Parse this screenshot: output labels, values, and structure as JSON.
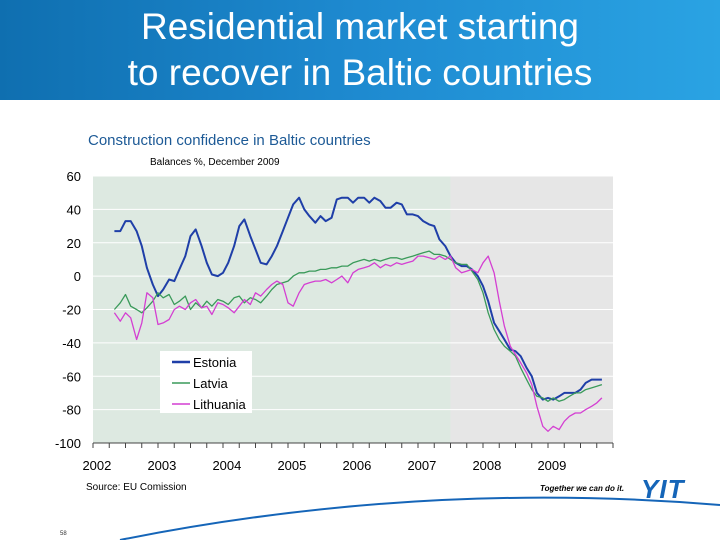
{
  "slide": {
    "title_line1": "Residential market starting",
    "title_line2": "to recover in Baltic countries",
    "source": "Source:  EU Comission",
    "tagline": "Together we can do it.",
    "logo": "YIT",
    "page_number": "58"
  },
  "colors": {
    "banner": "#1e8ad0",
    "estonia": "#1f3fa8",
    "latvia": "#3a9a5a",
    "lithuania": "#d43fd2",
    "plot_background_left": "#dde9e1",
    "plot_background_right": "#e6e6e6"
  },
  "chart_data": {
    "type": "line",
    "title": "Construction confidence in Baltic countries",
    "subtitle": "Balances %, December 2009",
    "xlabel": "",
    "ylabel": "",
    "ylim": [
      -100,
      60
    ],
    "xlim": [
      2002,
      2010
    ],
    "yticks": [
      "60",
      "40",
      "20",
      "0",
      "-20",
      "-40",
      "-60",
      "-80",
      "-100"
    ],
    "xticks": [
      "2002",
      "2003",
      "2004",
      "2005",
      "2006",
      "2007",
      "2008",
      "2009"
    ],
    "grid": true,
    "legend_position": "lower-left",
    "series": [
      {
        "name": "Estonia",
        "x": [
          2002.33,
          2002.42,
          2002.5,
          2002.58,
          2002.67,
          2002.75,
          2002.83,
          2002.92,
          2003.0,
          2003.08,
          2003.17,
          2003.25,
          2003.33,
          2003.42,
          2003.5,
          2003.58,
          2003.67,
          2003.75,
          2003.83,
          2003.92,
          2004.0,
          2004.08,
          2004.17,
          2004.25,
          2004.33,
          2004.42,
          2004.5,
          2004.58,
          2004.67,
          2004.75,
          2004.83,
          2004.92,
          2005.0,
          2005.08,
          2005.17,
          2005.25,
          2005.33,
          2005.42,
          2005.5,
          2005.58,
          2005.67,
          2005.75,
          2005.83,
          2005.92,
          2006.0,
          2006.08,
          2006.17,
          2006.25,
          2006.33,
          2006.42,
          2006.5,
          2006.58,
          2006.67,
          2006.75,
          2006.83,
          2006.92,
          2007.0,
          2007.08,
          2007.17,
          2007.25,
          2007.33,
          2007.42,
          2007.5,
          2007.58,
          2007.67,
          2007.75,
          2007.83,
          2007.92,
          2008.0,
          2008.08,
          2008.17,
          2008.25,
          2008.33,
          2008.42,
          2008.5,
          2008.58,
          2008.67,
          2008.75,
          2008.83,
          2008.92,
          2009.0,
          2009.08,
          2009.17,
          2009.25,
          2009.33,
          2009.42,
          2009.5,
          2009.58,
          2009.67,
          2009.75,
          2009.83
        ],
        "values": [
          27,
          27,
          33,
          33,
          27,
          18,
          5,
          -5,
          -12,
          -8,
          -2,
          -3,
          4,
          12,
          24,
          28,
          18,
          8,
          1,
          0,
          2,
          8,
          18,
          30,
          34,
          24,
          16,
          8,
          7,
          12,
          18,
          27,
          35,
          43,
          47,
          40,
          36,
          32,
          36,
          33,
          35,
          46,
          47,
          47,
          44,
          47,
          47,
          44,
          47,
          45,
          41,
          41,
          44,
          43,
          37,
          37,
          36,
          33,
          31,
          30,
          22,
          18,
          12,
          8,
          6,
          6,
          4,
          0,
          -6,
          -15,
          -28,
          -33,
          -38,
          -44,
          -45,
          -48,
          -55,
          -60,
          -70,
          -74,
          -73,
          -74,
          -72,
          -70,
          -70,
          -70,
          -68,
          -64,
          -62,
          -62,
          -62
        ]
      },
      {
        "name": "Latvia",
        "x": [
          2002.33,
          2002.42,
          2002.5,
          2002.58,
          2002.67,
          2002.75,
          2002.83,
          2002.92,
          2003.0,
          2003.08,
          2003.17,
          2003.25,
          2003.33,
          2003.42,
          2003.5,
          2003.58,
          2003.67,
          2003.75,
          2003.83,
          2003.92,
          2004.0,
          2004.08,
          2004.17,
          2004.25,
          2004.33,
          2004.42,
          2004.5,
          2004.58,
          2004.67,
          2004.75,
          2004.83,
          2004.92,
          2005.0,
          2005.08,
          2005.17,
          2005.25,
          2005.33,
          2005.42,
          2005.5,
          2005.58,
          2005.67,
          2005.75,
          2005.83,
          2005.92,
          2006.0,
          2006.08,
          2006.17,
          2006.25,
          2006.33,
          2006.42,
          2006.5,
          2006.58,
          2006.67,
          2006.75,
          2006.83,
          2006.92,
          2007.0,
          2007.08,
          2007.17,
          2007.25,
          2007.33,
          2007.42,
          2007.5,
          2007.58,
          2007.67,
          2007.75,
          2007.83,
          2007.92,
          2008.0,
          2008.08,
          2008.17,
          2008.25,
          2008.33,
          2008.42,
          2008.5,
          2008.58,
          2008.67,
          2008.75,
          2008.83,
          2008.92,
          2009.0,
          2009.08,
          2009.17,
          2009.25,
          2009.33,
          2009.42,
          2009.5,
          2009.58,
          2009.67,
          2009.75,
          2009.83
        ],
        "values": [
          -20,
          -16,
          -11,
          -18,
          -20,
          -22,
          -19,
          -15,
          -10,
          -13,
          -11,
          -17,
          -15,
          -12,
          -20,
          -16,
          -19,
          -15,
          -18,
          -14,
          -15,
          -17,
          -13,
          -12,
          -16,
          -13,
          -14,
          -16,
          -12,
          -8,
          -5,
          -4,
          -3,
          0,
          2,
          2,
          3,
          3,
          4,
          4,
          5,
          5,
          6,
          6,
          8,
          9,
          10,
          9,
          10,
          9,
          10,
          11,
          11,
          10,
          11,
          12,
          13,
          14,
          15,
          13,
          13,
          12,
          10,
          8,
          7,
          7,
          3,
          -2,
          -10,
          -22,
          -32,
          -38,
          -42,
          -45,
          -48,
          -55,
          -62,
          -68,
          -72,
          -73,
          -75,
          -73,
          -75,
          -74,
          -72,
          -70,
          -70,
          -68,
          -67,
          -66,
          -65
        ]
      },
      {
        "name": "Lithuania",
        "x": [
          2002.33,
          2002.42,
          2002.5,
          2002.58,
          2002.67,
          2002.75,
          2002.83,
          2002.92,
          2003.0,
          2003.08,
          2003.17,
          2003.25,
          2003.33,
          2003.42,
          2003.5,
          2003.58,
          2003.67,
          2003.75,
          2003.83,
          2003.92,
          2004.0,
          2004.08,
          2004.17,
          2004.25,
          2004.33,
          2004.42,
          2004.5,
          2004.58,
          2004.67,
          2004.75,
          2004.83,
          2004.92,
          2005.0,
          2005.08,
          2005.17,
          2005.25,
          2005.33,
          2005.42,
          2005.5,
          2005.58,
          2005.67,
          2005.75,
          2005.83,
          2005.92,
          2006.0,
          2006.08,
          2006.17,
          2006.25,
          2006.33,
          2006.42,
          2006.5,
          2006.58,
          2006.67,
          2006.75,
          2006.83,
          2006.92,
          2007.0,
          2007.08,
          2007.17,
          2007.25,
          2007.33,
          2007.42,
          2007.5,
          2007.58,
          2007.67,
          2007.75,
          2007.83,
          2007.92,
          2008.0,
          2008.08,
          2008.17,
          2008.25,
          2008.33,
          2008.42,
          2008.5,
          2008.58,
          2008.67,
          2008.75,
          2008.83,
          2008.92,
          2009.0,
          2009.08,
          2009.17,
          2009.25,
          2009.33,
          2009.42,
          2009.5,
          2009.58,
          2009.67,
          2009.75,
          2009.83
        ],
        "values": [
          -22,
          -27,
          -22,
          -25,
          -38,
          -28,
          -10,
          -13,
          -29,
          -28,
          -26,
          -20,
          -18,
          -20,
          -16,
          -14,
          -19,
          -18,
          -23,
          -16,
          -17,
          -19,
          -22,
          -18,
          -14,
          -17,
          -10,
          -12,
          -8,
          -5,
          -3,
          -5,
          -16,
          -18,
          -10,
          -5,
          -4,
          -3,
          -3,
          -2,
          -4,
          -2,
          0,
          -4,
          2,
          4,
          5,
          6,
          8,
          5,
          7,
          6,
          8,
          7,
          8,
          9,
          12,
          12,
          11,
          10,
          12,
          10,
          12,
          5,
          2,
          3,
          4,
          2,
          8,
          12,
          2,
          -15,
          -30,
          -42,
          -47,
          -52,
          -58,
          -65,
          -78,
          -90,
          -93,
          -90,
          -92,
          -87,
          -84,
          -82,
          -82,
          -80,
          -78,
          -76,
          -73
        ]
      }
    ]
  }
}
